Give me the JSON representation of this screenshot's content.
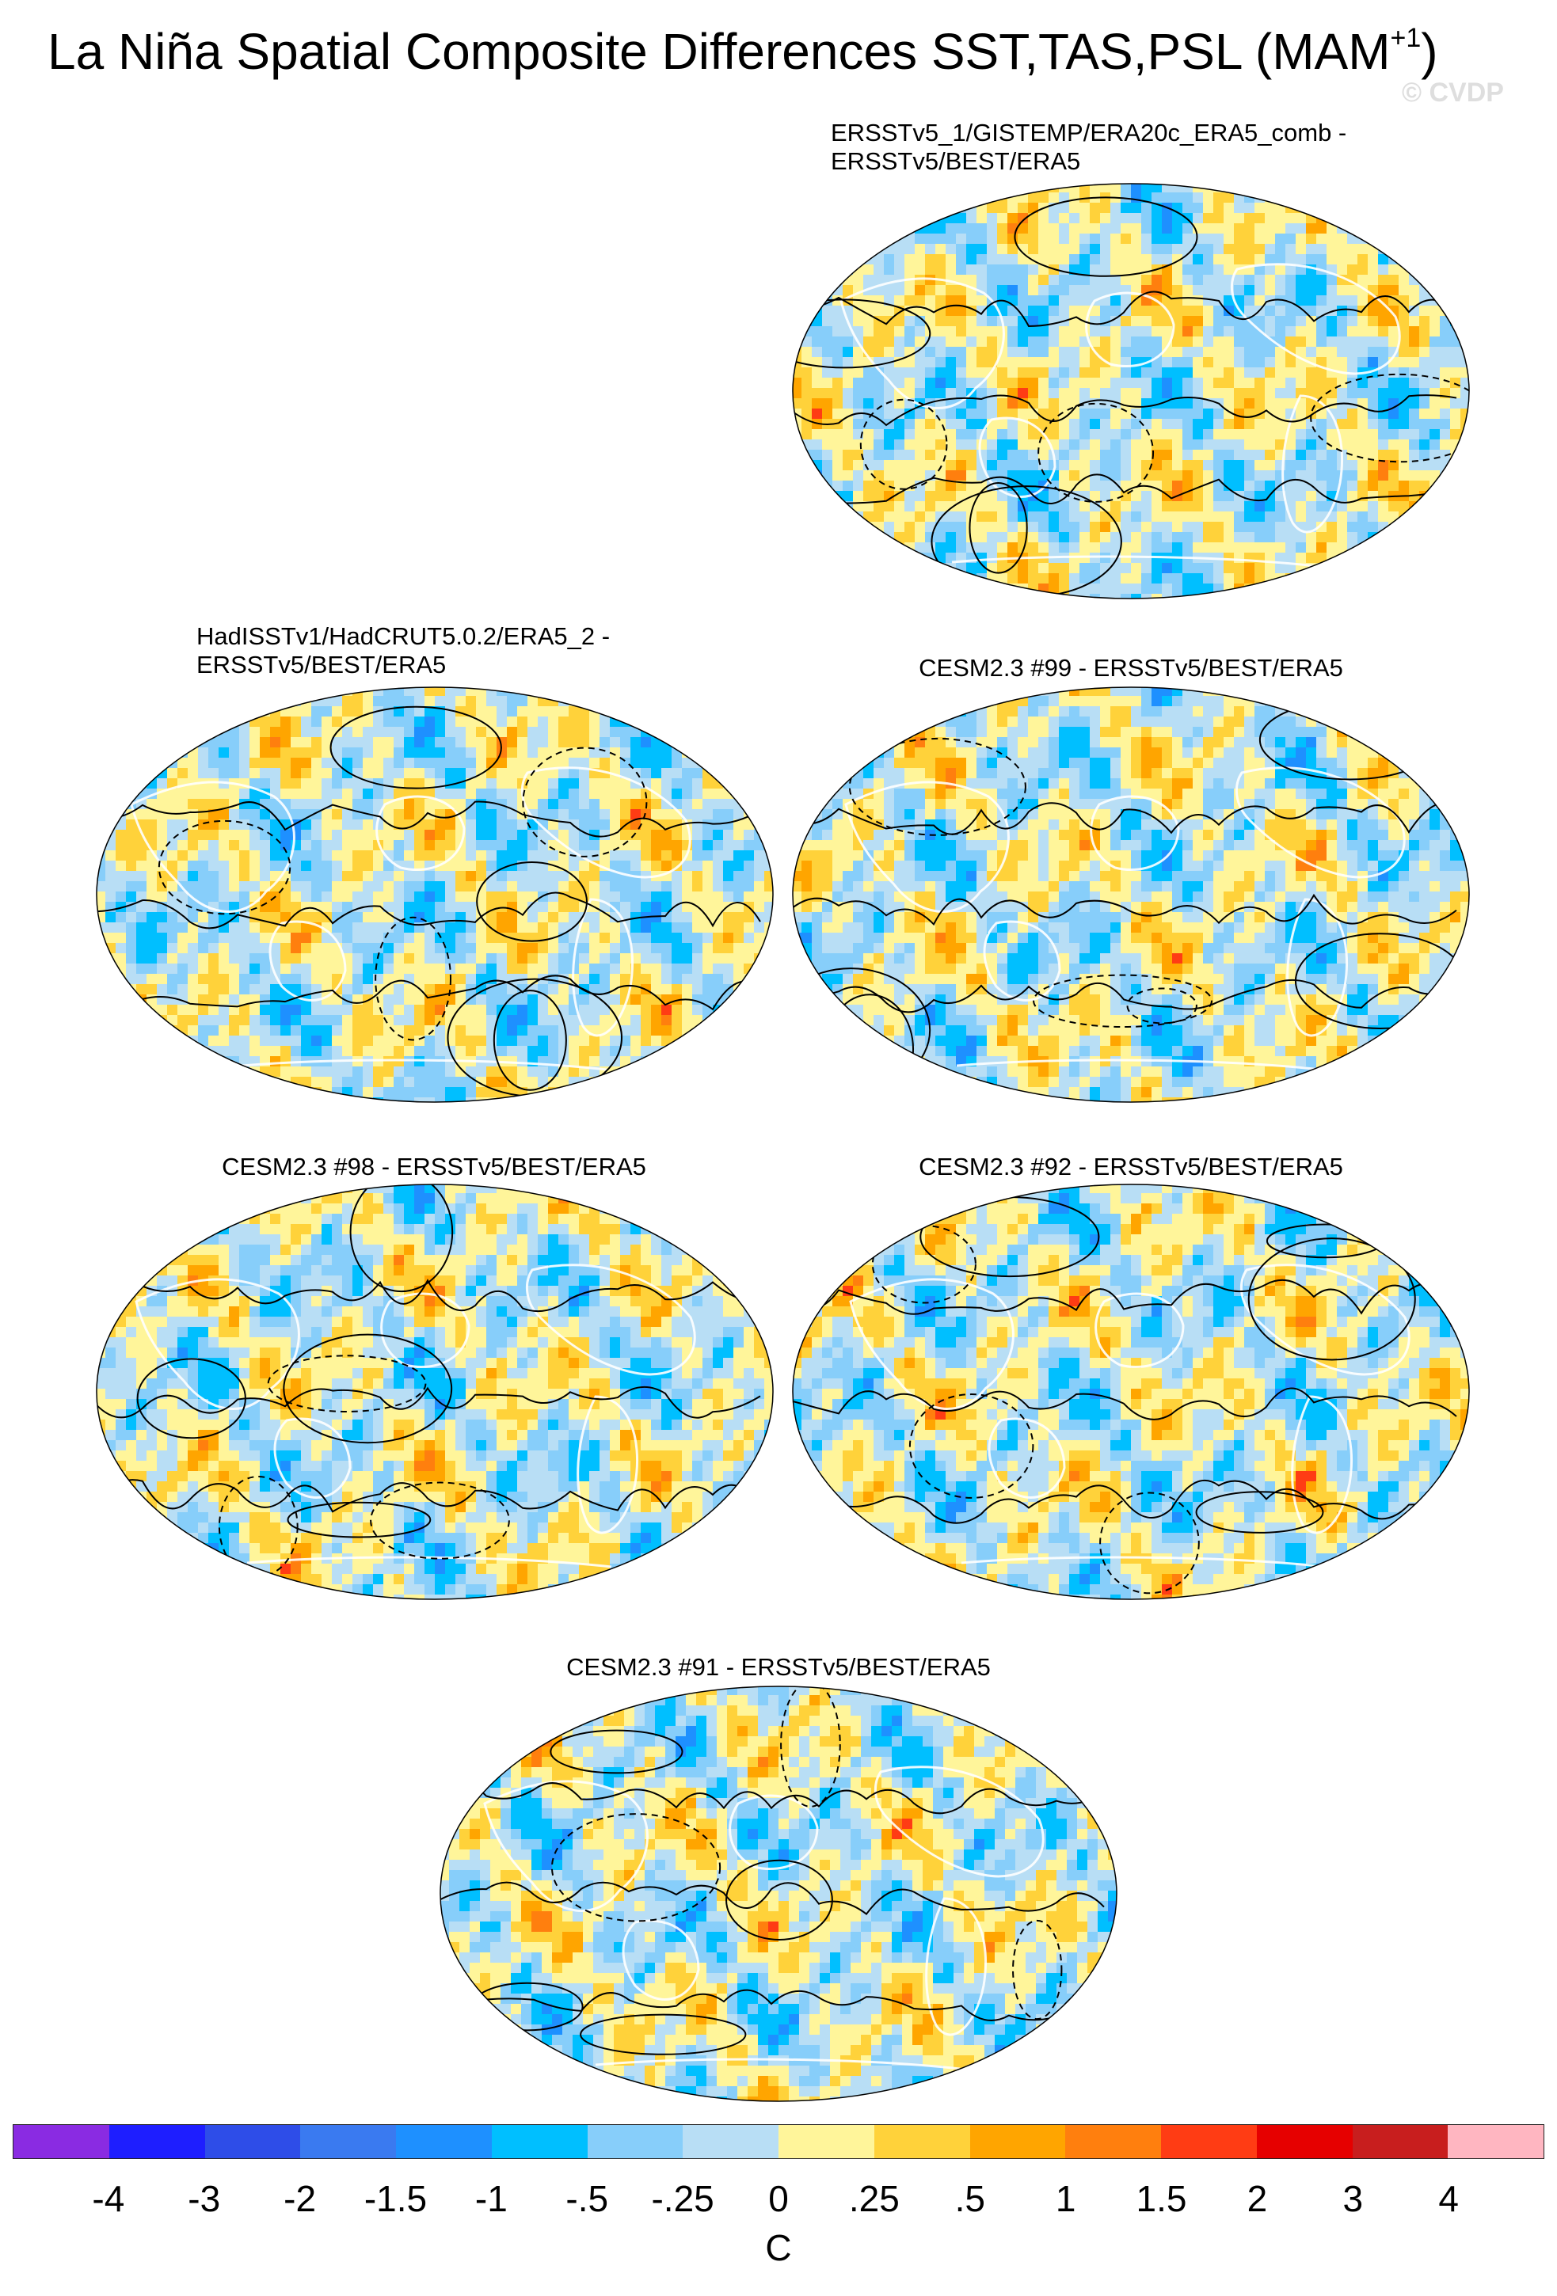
{
  "title": "La Niña Spatial Composite Differences SST,TAS,PSL (MAM",
  "title_superscript": "+1",
  "title_close": ")",
  "watermark": "© CVDP",
  "panels": [
    {
      "title_line1": "ERSSTv5_1/GISTEMP/ERA20c_ERA5_comb -",
      "title_line2": "ERSSTv5/BEST/ERA5",
      "pattern": 1
    },
    {
      "title_line1": "HadISSTv1/HadCRUT5.0.2/ERA5_2 -",
      "title_line2": "ERSSTv5/BEST/ERA5",
      "pattern": 2
    },
    {
      "title_line1": "CESM2.3 #99 - ERSSTv5/BEST/ERA5",
      "title_line2": "",
      "pattern": 3
    },
    {
      "title_line1": "CESM2.3 #98 - ERSSTv5/BEST/ERA5",
      "title_line2": "",
      "pattern": 4
    },
    {
      "title_line1": "CESM2.3 #92 - ERSSTv5/BEST/ERA5",
      "title_line2": "",
      "pattern": 5
    },
    {
      "title_line1": "CESM2.3 #91 - ERSSTv5/BEST/ERA5",
      "title_line2": "",
      "pattern": 6
    }
  ],
  "colorbar": {
    "unit": "C",
    "ticks": [
      "-4",
      "-3",
      "-2",
      "-1.5",
      "-1",
      "-.5",
      "-.25",
      "0",
      ".25",
      ".5",
      "1",
      "1.5",
      "2",
      "3",
      "4"
    ],
    "colors": [
      "#8a2be2",
      "#1e1eff",
      "#2e4de8",
      "#3a7af0",
      "#1e90ff",
      "#00bfff",
      "#87cefa",
      "#b8def5",
      "#fff59a",
      "#ffd23a",
      "#ffa500",
      "#ff7f0e",
      "#ff3c14",
      "#e60000",
      "#c81e1e",
      "#ffb6c1"
    ]
  }
}
